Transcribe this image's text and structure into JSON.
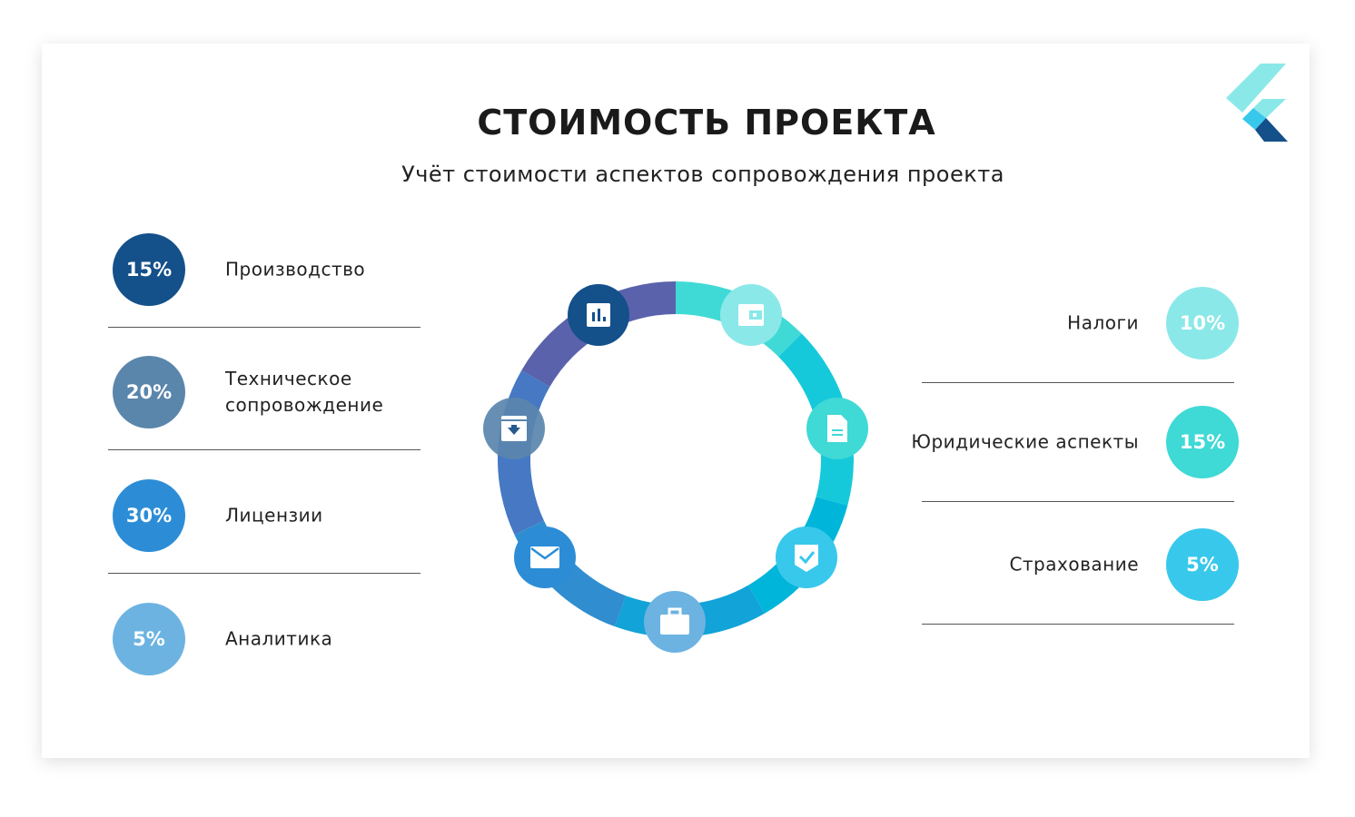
{
  "title": "СТОИМОСТЬ ПРОЕКТА",
  "subtitle": "Учёт стоимости аспектов сопровождения проекта",
  "left_items": [
    {
      "percent": "15%",
      "label": "Производство",
      "color": "#14508a"
    },
    {
      "percent": "20%",
      "label": "Техническое сопровождение",
      "color": "#5a86ac"
    },
    {
      "percent": "30%",
      "label": "Лицензии",
      "color": "#2c8dd6"
    },
    {
      "percent": "5%",
      "label": "Аналитика",
      "color": "#6cb3e2"
    }
  ],
  "right_items": [
    {
      "percent": "10%",
      "label": "Налоги",
      "color": "#8be8e8"
    },
    {
      "percent": "15%",
      "label": "Юридические аспекты",
      "color": "#3fd9d6"
    },
    {
      "percent": "5%",
      "label": "Страхование",
      "color": "#38c8ec"
    }
  ],
  "ring_icons": [
    {
      "icon": "bar-chart-icon",
      "color": "#14508a"
    },
    {
      "icon": "wallet-icon",
      "color": "#8be8e8"
    },
    {
      "icon": "document-icon",
      "color": "#3fd9d6"
    },
    {
      "icon": "shield-check-icon",
      "color": "#38c8ec"
    },
    {
      "icon": "briefcase-icon",
      "color": "#6cb3e2"
    },
    {
      "icon": "mail-icon",
      "color": "#2c8dd6"
    },
    {
      "icon": "archive-download-icon",
      "color": "#5a86ac"
    }
  ],
  "logo": "flutter-logo"
}
